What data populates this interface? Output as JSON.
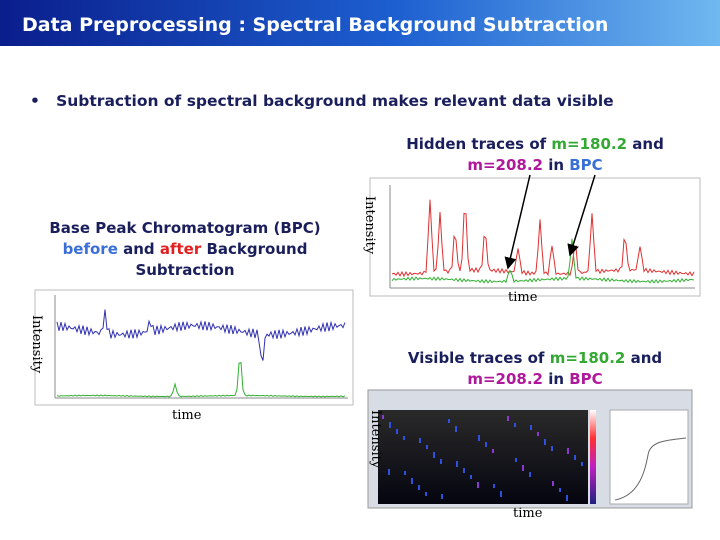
{
  "header": {
    "title": "Data Preprocessing : Spectral Background Subtraction"
  },
  "bullet": "Subtraction of spectral background makes relevant data visible",
  "hidden_callout": [
    "Hidden traces of ",
    "m=180.2",
    " and ",
    "m=208.2",
    " in ",
    "BPC"
  ],
  "bpc_caption": [
    "Base Peak Chromatogram (BPC)",
    "before",
    " and ",
    "after",
    " Background",
    "Subtraction"
  ],
  "visible_callout": [
    "Visible traces of ",
    "m=180.2",
    " and ",
    "m=208.2",
    " in ",
    "BPC"
  ],
  "axis_labels": {
    "top_y": "Intensity",
    "top_x": "time",
    "left_y": "Intensity",
    "left_x": "time",
    "heat_y": "Intensity",
    "heat_x": "time"
  }
}
